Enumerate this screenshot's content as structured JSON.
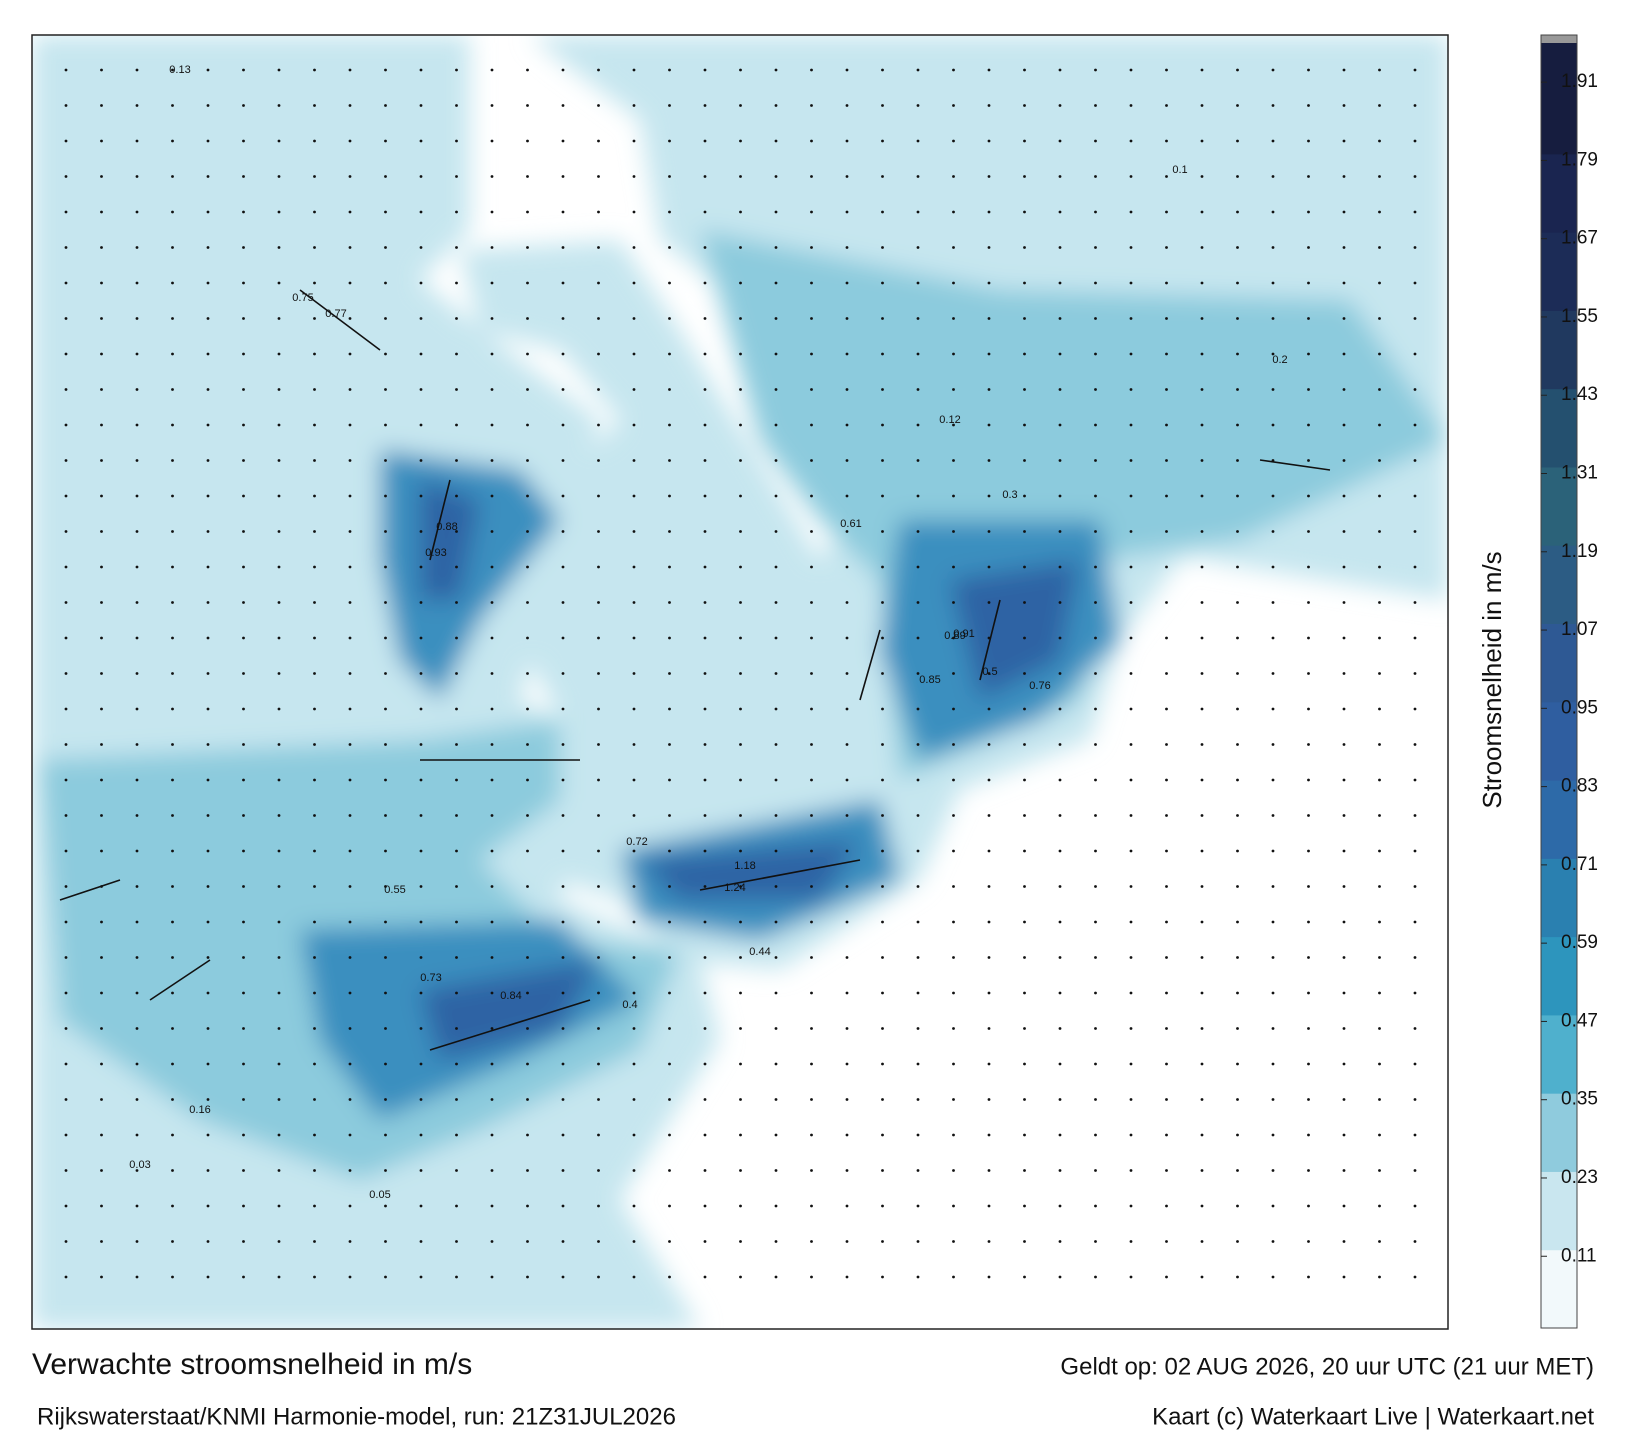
{
  "chart_data": {
    "type": "map",
    "title": "Verwachte stroomsnelheid in m/s",
    "valid_time": "Geldt op: 02 AUG 2026, 20 uur UTC (21 uur MET)",
    "source": "Rijkswaterstaat/KNMI Harmonie-model, run: 21Z31JUL2026",
    "credit": "Kaart (c) Waterkaart Live | Waterkaart.net",
    "colorbar_label": "Stroomsnelheid in m/s",
    "clim": [
      0,
      1.97
    ],
    "cticks": [
      0.11,
      0.23,
      0.35,
      0.47,
      0.59,
      0.71,
      0.83,
      0.95,
      1.07,
      1.19,
      1.31,
      1.43,
      1.55,
      1.67,
      1.79,
      1.91
    ],
    "colors": [
      "#f2f9fb",
      "#c9e6ef",
      "#8fcbdd",
      "#4fb0cd",
      "#2d95bd",
      "#2a80b0",
      "#2d6aa8",
      "#2f5ea0",
      "#2e5994",
      "#2c5c84",
      "#2b6279",
      "#24506f",
      "#20395f",
      "#1c2c57",
      "#1a2550",
      "#161d3f"
    ],
    "current_labels": [
      1.24,
      1.18,
      0.93,
      0.88,
      0.75,
      0.77,
      0.84,
      0.73,
      0.89,
      0.91,
      0.85,
      0.72,
      0.76,
      0.61,
      0.5,
      0.44,
      0.55,
      0.4,
      0.3,
      0.16,
      0.13,
      0.12,
      0.1,
      0.2,
      0.05,
      0.03
    ]
  }
}
